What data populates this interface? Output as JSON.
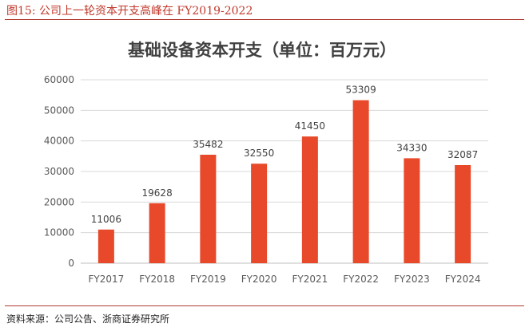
{
  "figure": {
    "caption": "图15:   公司上一轮资本开支高峰在 FY2019-2022",
    "source": "资料来源：公司公告、浙商证券研究所",
    "accent": "#c0392b"
  },
  "chart_data": {
    "type": "bar",
    "title": "基础设备资本开支（单位：百万元）",
    "categories": [
      "FY2017",
      "FY2018",
      "FY2019",
      "FY2020",
      "FY2021",
      "FY2022",
      "FY2023",
      "FY2024"
    ],
    "values": [
      11006,
      19628,
      35482,
      32550,
      41450,
      53309,
      34330,
      32087
    ],
    "value_labels": [
      "11006",
      "19628",
      "35482",
      "32550",
      "41450",
      "53309",
      "34330",
      "32087"
    ],
    "yticks": [
      "0",
      "10000",
      "20000",
      "30000",
      "40000",
      "50000",
      "60000"
    ],
    "ylim": [
      0,
      60000
    ],
    "bar_color": "#e8492a",
    "grid": true,
    "xlabel": "",
    "ylabel": ""
  }
}
